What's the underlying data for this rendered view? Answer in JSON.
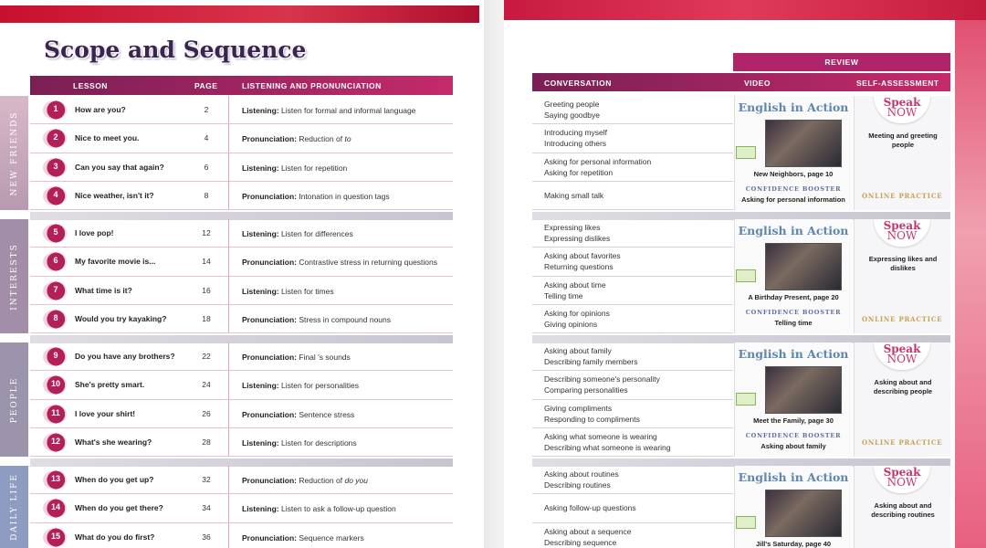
{
  "left": {
    "title": "Scope and Sequence",
    "headers": {
      "lesson": "LESSON",
      "page": "PAGE",
      "skills": "LISTENING AND PRONUNCIATION"
    },
    "units": [
      {
        "name": "NEW FRIENDS",
        "lessons": [
          {
            "number": "1",
            "title": "How are you?",
            "page": 2,
            "skill": {
              "label": "Listening:",
              "text": "Listen for formal and informal language"
            }
          },
          {
            "number": "2",
            "title": "Nice to meet you.",
            "page": 4,
            "skill": {
              "label": "Pronunciation:",
              "text": "Reduction of",
              "emph": "to"
            }
          },
          {
            "number": "3",
            "title": "Can you say that again?",
            "page": 6,
            "skill": {
              "label": "Listening:",
              "text": "Listen for repetition"
            }
          },
          {
            "number": "4",
            "title": "Nice weather, isn't it?",
            "page": 8,
            "skill": {
              "label": "Pronunciation:",
              "text": "Intonation in question tags"
            }
          }
        ]
      },
      {
        "name": "INTERESTS",
        "lessons": [
          {
            "number": "5",
            "title": "I love pop!",
            "page": 12,
            "skill": {
              "label": "Listening:",
              "text": "Listen for differences"
            }
          },
          {
            "number": "6",
            "title": "My favorite movie is...",
            "page": 14,
            "skill": {
              "label": "Pronunciation:",
              "text": "Contrastive stress in returning questions"
            }
          },
          {
            "number": "7",
            "title": "What time is it?",
            "page": 16,
            "skill": {
              "label": "Listening:",
              "text": "Listen for times"
            }
          },
          {
            "number": "8",
            "title": "Would you try kayaking?",
            "page": 18,
            "skill": {
              "label": "Pronunciation:",
              "text": "Stress in compound nouns"
            }
          }
        ]
      },
      {
        "name": "PEOPLE",
        "lessons": [
          {
            "number": "9",
            "title": "Do you have any brothers?",
            "page": 22,
            "skill": {
              "label": "Pronunciation:",
              "text": "Final 's sounds"
            }
          },
          {
            "number": "10",
            "title": "She's pretty smart.",
            "page": 24,
            "skill": {
              "label": "Listening:",
              "text": "Listen for personalities"
            }
          },
          {
            "number": "11",
            "title": "I love your shirt!",
            "page": 26,
            "skill": {
              "label": "Pronunciation:",
              "text": "Sentence stress"
            }
          },
          {
            "number": "12",
            "title": "What's she wearing?",
            "page": 28,
            "skill": {
              "label": "Listening:",
              "text": "Listen for descriptions"
            }
          }
        ]
      },
      {
        "name": "DAILY LIFE",
        "lessons": [
          {
            "number": "13",
            "title": "When do you get up?",
            "page": 32,
            "skill": {
              "label": "Pronunciation:",
              "text": "Reduction of",
              "emph": "do you"
            }
          },
          {
            "number": "14",
            "title": "When do you get there?",
            "page": 34,
            "skill": {
              "label": "Listening:",
              "text": "Listen to ask a follow-up question"
            }
          },
          {
            "number": "15",
            "title": "What do you do first?",
            "page": 36,
            "skill": {
              "label": "Pronunciation:",
              "text": "Sequence markers"
            }
          }
        ]
      }
    ]
  },
  "right": {
    "review": "REVIEW",
    "headers": {
      "conversation": "CONVERSATION",
      "video": "VIDEO",
      "self_assessment": "SELF-ASSESSMENT"
    },
    "units": [
      {
        "conversation": [
          [
            "Greeting people",
            "Saying goodbye"
          ],
          [
            "Introducing myself",
            "Introducing others"
          ],
          [
            "Asking for personal information",
            "Asking for repetition"
          ],
          [
            "Making small talk"
          ]
        ],
        "video": {
          "heading": "English in Action",
          "caption": "New Neighbors, page 10",
          "booster_label": "CONFIDENCE BOOSTER",
          "booster_text": "Asking for personal information"
        },
        "self": {
          "logo_top": "Speak",
          "logo_bottom": "NOW",
          "text": "Meeting and greeting people",
          "online": "ONLINE PRACTICE"
        }
      },
      {
        "conversation": [
          [
            "Expressing likes",
            "Expressing dislikes"
          ],
          [
            "Asking about favorites",
            "Returning questions"
          ],
          [
            "Asking about time",
            "Telling time"
          ],
          [
            "Asking for opinions",
            "Giving opinions"
          ]
        ],
        "video": {
          "heading": "English in Action",
          "caption": "A Birthday Present, page 20",
          "booster_label": "CONFIDENCE BOOSTER",
          "booster_text": "Telling time"
        },
        "self": {
          "logo_top": "Speak",
          "logo_bottom": "NOW",
          "text": "Expressing likes and dislikes",
          "online": "ONLINE PRACTICE"
        }
      },
      {
        "conversation": [
          [
            "Asking about family",
            "Describing family members"
          ],
          [
            "Describing someone's personality",
            "Comparing personalities"
          ],
          [
            "Giving compliments",
            "Responding to compliments"
          ],
          [
            "Asking what someone is wearing",
            "Describing what someone is wearing"
          ]
        ],
        "video": {
          "heading": "English in Action",
          "caption": "Meet the Family, page 30",
          "booster_label": "CONFIDENCE BOOSTER",
          "booster_text": "Asking about family"
        },
        "self": {
          "logo_top": "Speak",
          "logo_bottom": "NOW",
          "text": "Asking about and describing people",
          "online": "ONLINE PRACTICE"
        }
      },
      {
        "conversation": [
          [
            "Asking about routines",
            "Describing routines"
          ],
          [
            "Asking follow-up questions"
          ],
          [
            "Asking about a sequence",
            "Describing sequence"
          ]
        ],
        "video": {
          "heading": "English in Action",
          "caption": "Jill's Saturday, page 40"
        },
        "self": {
          "logo_top": "Speak",
          "logo_bottom": "NOW",
          "text": "Asking about and describing routines"
        }
      }
    ]
  }
}
